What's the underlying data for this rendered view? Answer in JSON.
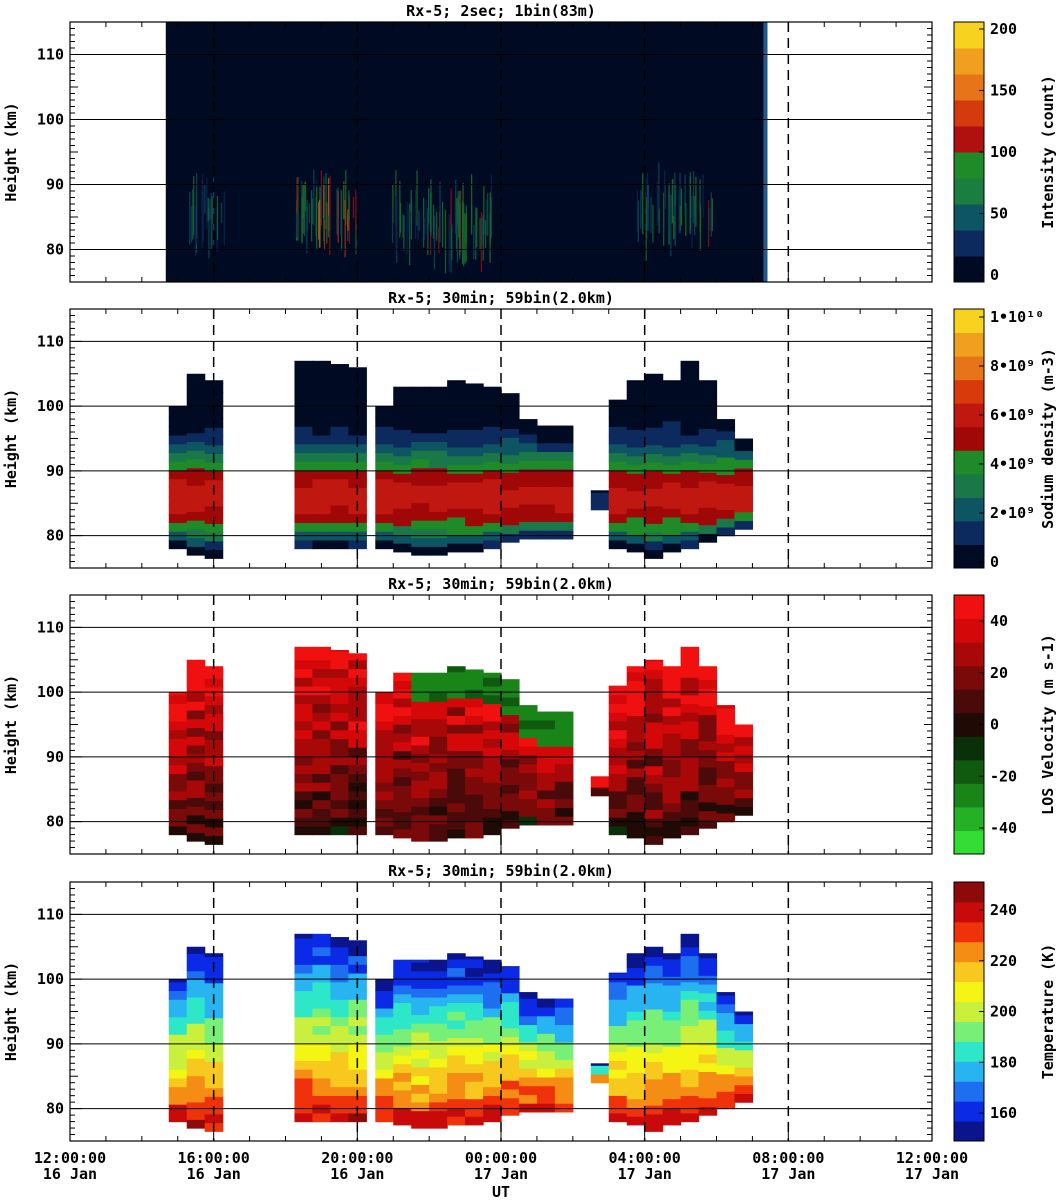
{
  "figure": {
    "x_axis": {
      "label": "UT",
      "ticks": [
        {
          "time": "12:00:00",
          "date": "16 Jan"
        },
        {
          "time": "16:00:00",
          "date": "16 Jan"
        },
        {
          "time": "20:00:00",
          "date": "16 Jan"
        },
        {
          "time": "00:00:00",
          "date": "17 Jan"
        },
        {
          "time": "04:00:00",
          "date": "17 Jan"
        },
        {
          "time": "08:00:00",
          "date": "17 Jan"
        },
        {
          "time": "12:00:00",
          "date": "17 Jan"
        }
      ]
    },
    "panels": [
      {
        "title": "Rx-5;  2sec; 1bin(83m)",
        "ylabel": "Height (km)",
        "colorbar": {
          "label": "Intensity (count)",
          "ticks": [
            "0",
            "50",
            "100",
            "150",
            "200"
          ],
          "colors": [
            "#000a22",
            "#0d2a5e",
            "#0e5563",
            "#1c7d40",
            "#1f8a28",
            "#b01010",
            "#d43a0c",
            "#e8741a",
            "#f0a01e",
            "#f7d21e"
          ]
        }
      },
      {
        "title": "Rx-5; 30min; 59bin(2.0km)",
        "ylabel": "Height (km)",
        "colorbar": {
          "label": "Sodium density (m-3)",
          "ticks": [
            "0",
            "2•10⁹",
            "4•10⁹",
            "6•10⁹",
            "8•10⁹",
            "1•10¹⁰"
          ],
          "colors": [
            "#000a22",
            "#0d2a5e",
            "#0e5563",
            "#1a7848",
            "#1f8a28",
            "#a00808",
            "#c01810",
            "#d83a0c",
            "#e8741a",
            "#f0a01e",
            "#f7d21e"
          ]
        }
      },
      {
        "title": "Rx-5; 30min; 59bin(2.0km)",
        "ylabel": "Height (km)",
        "colorbar": {
          "label": "LOS Velocity (m s-1)",
          "ticks": [
            "-40",
            "-20",
            "0",
            "20",
            "40"
          ],
          "colors": [
            "#33dd33",
            "#25b125",
            "#198519",
            "#0f5a0f",
            "#0a300a",
            "#200a05",
            "#4a0a0a",
            "#7a0a0a",
            "#a80808",
            "#d40808",
            "#f01010"
          ]
        }
      },
      {
        "title": "Rx-5; 30min; 59bin(2.0km)",
        "ylabel": "Height (km)",
        "colorbar": {
          "label": "Temperature (K)",
          "ticks": [
            "160",
            "180",
            "200",
            "220",
            "240"
          ],
          "colors": [
            "#0a148c",
            "#0a2ae6",
            "#1e6ef0",
            "#28b4f0",
            "#2ee6c8",
            "#78f078",
            "#c8f03c",
            "#f5f514",
            "#f7c81e",
            "#f58c14",
            "#f0320a",
            "#c80a0a",
            "#8c0a0a"
          ]
        }
      }
    ]
  },
  "chart_data": [
    {
      "type": "heatmap",
      "title": "Rx-5;  2sec; 1bin(83m)",
      "xlabel": "UT",
      "ylabel": "Height (km)",
      "colorbar_label": "Intensity (count)",
      "x_range_hours": [
        "16 Jan 12:00:00",
        "17 Jan 12:00:00"
      ],
      "ylim": [
        75,
        115
      ],
      "yticks": [
        80,
        90,
        100,
        110
      ],
      "clim": [
        0,
        200
      ],
      "data_extent": {
        "start": "16 Jan 14:40",
        "end": "17 Jan 07:25"
      },
      "enhancement_patches": [
        {
          "center": "16 Jan 15:45",
          "height": 85,
          "value": 30
        },
        {
          "center": "16 Jan 18:45",
          "height": 86,
          "value": 40
        },
        {
          "center": "16 Jan 19:25",
          "height": 85,
          "value": 60
        },
        {
          "center": "16 Jan 21:30",
          "height": 85,
          "value": 40
        },
        {
          "center": "16 Jan 22:30",
          "height": 84,
          "value": 45
        },
        {
          "center": "16 Jan 23:10",
          "height": 84,
          "value": 40
        },
        {
          "center": "17 Jan 04:20",
          "height": 86,
          "value": 35
        },
        {
          "center": "17 Jan 05:20",
          "height": 86,
          "value": 45
        }
      ]
    },
    {
      "type": "heatmap",
      "title": "Rx-5; 30min; 59bin(2.0km)",
      "xlabel": "UT",
      "ylabel": "Height (km)",
      "colorbar_label": "Sodium density (m-3)",
      "ylim": [
        75,
        115
      ],
      "yticks": [
        80,
        90,
        100,
        110
      ],
      "clim": [
        0,
        10000000000.0
      ],
      "columns": [
        {
          "start": "16 Jan 14:45",
          "bottom": 78,
          "top": 100
        },
        {
          "start": "16 Jan 15:15",
          "bottom": 77,
          "top": 105
        },
        {
          "start": "16 Jan 15:45",
          "bottom": 76.5,
          "top": 104
        },
        {
          "start": "16 Jan 18:15",
          "bottom": 78,
          "top": 107
        },
        {
          "start": "16 Jan 18:45",
          "bottom": 78,
          "top": 107
        },
        {
          "start": "16 Jan 19:15",
          "bottom": 78,
          "top": 106.5
        },
        {
          "start": "16 Jan 19:45",
          "bottom": 78,
          "top": 106
        },
        {
          "start": "16 Jan 20:30",
          "bottom": 78,
          "top": 100
        },
        {
          "start": "16 Jan 21:00",
          "bottom": 77.5,
          "top": 103
        },
        {
          "start": "16 Jan 21:30",
          "bottom": 77,
          "top": 103
        },
        {
          "start": "16 Jan 22:00",
          "bottom": 77,
          "top": 103
        },
        {
          "start": "16 Jan 22:30",
          "bottom": 77.5,
          "top": 104
        },
        {
          "start": "16 Jan 23:00",
          "bottom": 77.5,
          "top": 103.5
        },
        {
          "start": "16 Jan 23:30",
          "bottom": 78,
          "top": 103
        },
        {
          "start": "17 Jan 00:00",
          "bottom": 79,
          "top": 102
        },
        {
          "start": "17 Jan 00:30",
          "bottom": 79.5,
          "top": 98
        },
        {
          "start": "17 Jan 01:00",
          "bottom": 79.5,
          "top": 97
        },
        {
          "start": "17 Jan 01:30",
          "bottom": 79.5,
          "top": 97
        },
        {
          "start": "17 Jan 02:30",
          "bottom": 84,
          "top": 87
        },
        {
          "start": "17 Jan 03:00",
          "bottom": 78,
          "top": 101
        },
        {
          "start": "17 Jan 03:30",
          "bottom": 77.5,
          "top": 104
        },
        {
          "start": "17 Jan 04:00",
          "bottom": 76.5,
          "top": 105
        },
        {
          "start": "17 Jan 04:30",
          "bottom": 77.5,
          "top": 104
        },
        {
          "start": "17 Jan 05:00",
          "bottom": 78,
          "top": 107
        },
        {
          "start": "17 Jan 05:30",
          "bottom": 79,
          "top": 104
        },
        {
          "start": "17 Jan 06:00",
          "bottom": 80,
          "top": 98
        },
        {
          "start": "17 Jan 06:30",
          "bottom": 81,
          "top": 95
        }
      ],
      "peak_layer_height": 86,
      "peak_value_approx": 5500000000.0
    },
    {
      "type": "heatmap",
      "title": "Rx-5; 30min; 59bin(2.0km)",
      "xlabel": "UT",
      "ylabel": "Height (km)",
      "colorbar_label": "LOS Velocity (m s-1)",
      "ylim": [
        75,
        115
      ],
      "yticks": [
        80,
        90,
        100,
        110
      ],
      "clim": [
        -50,
        50
      ],
      "description_values": {
        "upper_red_region": 40,
        "lower_dark_region": 10,
        "green_top_after_2130": -25
      }
    },
    {
      "type": "heatmap",
      "title": "Rx-5; 30min; 59bin(2.0km)",
      "xlabel": "UT",
      "ylabel": "Height (km)",
      "colorbar_label": "Temperature (K)",
      "ylim": [
        75,
        115
      ],
      "yticks": [
        80,
        90,
        100,
        110
      ],
      "clim": [
        150,
        250
      ],
      "description_values": {
        "top_of_layer": 165,
        "mid_layer_90km": 205,
        "bottom_of_layer": 240
      }
    }
  ]
}
